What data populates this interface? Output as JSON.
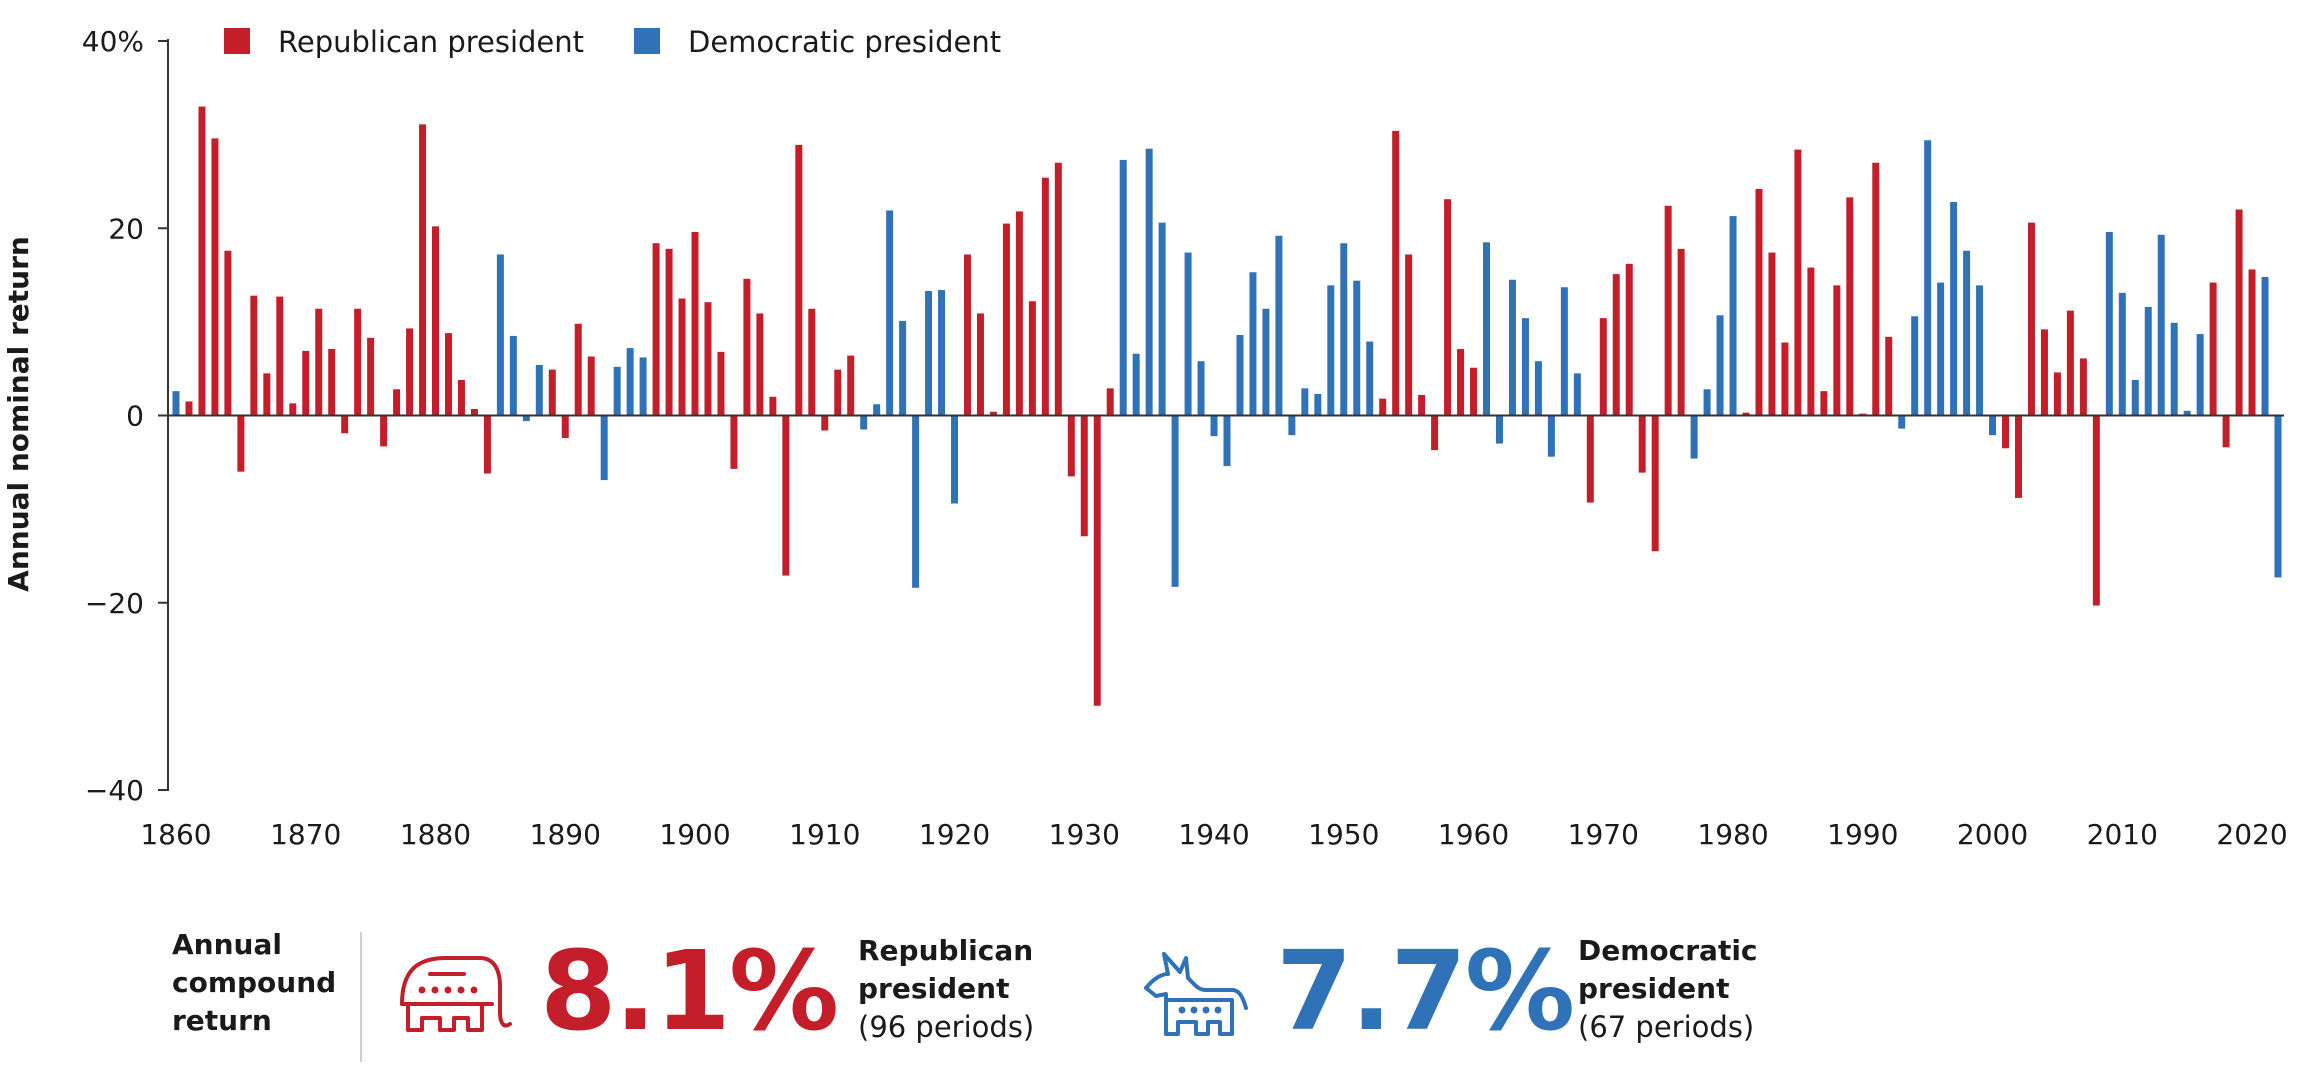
{
  "colors": {
    "republican": "#c41e2a",
    "democratic": "#2f72b8",
    "axis": "#333333"
  },
  "chart_data": {
    "type": "bar",
    "title": "",
    "xlabel": "",
    "ylabel": "Annual nominal return",
    "ylim": [
      -40,
      40
    ],
    "xlim": [
      1860,
      2022
    ],
    "y_ticks": [
      {
        "value": 40,
        "label": "40%"
      },
      {
        "value": 20,
        "label": "20"
      },
      {
        "value": 0,
        "label": "0"
      },
      {
        "value": -20,
        "label": "−20"
      },
      {
        "value": -40,
        "label": "−40"
      }
    ],
    "x_ticks": [
      1860,
      1870,
      1880,
      1890,
      1900,
      1910,
      1920,
      1930,
      1940,
      1950,
      1960,
      1970,
      1980,
      1990,
      2000,
      2010,
      2020
    ],
    "legend": [
      {
        "name": "Republican president",
        "party": "R"
      },
      {
        "name": "Democratic president",
        "party": "D"
      }
    ],
    "legend_position": "top-left",
    "grid": false,
    "series": [
      {
        "name": "Republican president",
        "party": "R",
        "points": [
          [
            1861,
            1.5
          ],
          [
            1862,
            33
          ],
          [
            1863,
            29.6
          ],
          [
            1864,
            17.6
          ],
          [
            1865,
            -6
          ],
          [
            1866,
            12.8
          ],
          [
            1867,
            4.5
          ],
          [
            1868,
            12.7
          ],
          [
            1869,
            1.3
          ],
          [
            1870,
            6.9
          ],
          [
            1871,
            11.4
          ],
          [
            1872,
            7.1
          ],
          [
            1873,
            -1.9
          ],
          [
            1874,
            11.4
          ],
          [
            1875,
            8.3
          ],
          [
            1876,
            -3.3
          ],
          [
            1877,
            2.8
          ],
          [
            1878,
            9.3
          ],
          [
            1879,
            31.1
          ],
          [
            1880,
            20.2
          ],
          [
            1881,
            8.8
          ],
          [
            1882,
            3.8
          ],
          [
            1883,
            0.7
          ],
          [
            1884,
            -6.2
          ],
          [
            1889,
            4.9
          ],
          [
            1890,
            -2.4
          ],
          [
            1891,
            9.8
          ],
          [
            1892,
            6.3
          ],
          [
            1897,
            18.4
          ],
          [
            1898,
            17.8
          ],
          [
            1899,
            12.5
          ],
          [
            1900,
            19.6
          ],
          [
            1901,
            12.1
          ],
          [
            1902,
            6.8
          ],
          [
            1903,
            -5.7
          ],
          [
            1904,
            14.6
          ],
          [
            1905,
            10.9
          ],
          [
            1906,
            2
          ],
          [
            1907,
            -17.1
          ],
          [
            1908,
            28.9
          ],
          [
            1909,
            11.4
          ],
          [
            1910,
            -1.6
          ],
          [
            1911,
            4.9
          ],
          [
            1912,
            6.4
          ],
          [
            1921,
            17.2
          ],
          [
            1922,
            10.9
          ],
          [
            1923,
            0.4
          ],
          [
            1924,
            20.5
          ],
          [
            1925,
            21.8
          ],
          [
            1926,
            12.2
          ],
          [
            1927,
            25.4
          ],
          [
            1928,
            27
          ],
          [
            1929,
            -6.5
          ],
          [
            1930,
            -12.9
          ],
          [
            1931,
            -31
          ],
          [
            1932,
            2.9
          ],
          [
            1953,
            1.8
          ],
          [
            1954,
            30.4
          ],
          [
            1955,
            17.2
          ],
          [
            1956,
            2.2
          ],
          [
            1957,
            -3.7
          ],
          [
            1958,
            23.1
          ],
          [
            1959,
            7.1
          ],
          [
            1960,
            5.1
          ],
          [
            1969,
            -9.3
          ],
          [
            1970,
            10.4
          ],
          [
            1971,
            15.1
          ],
          [
            1972,
            16.2
          ],
          [
            1973,
            -6.1
          ],
          [
            1974,
            -14.5
          ],
          [
            1975,
            22.4
          ],
          [
            1976,
            17.8
          ],
          [
            1981,
            0.3
          ],
          [
            1982,
            24.2
          ],
          [
            1983,
            17.4
          ],
          [
            1984,
            7.8
          ],
          [
            1985,
            28.4
          ],
          [
            1986,
            15.8
          ],
          [
            1987,
            2.6
          ],
          [
            1988,
            13.9
          ],
          [
            1989,
            23.3
          ],
          [
            1990,
            0.2
          ],
          [
            1991,
            27
          ],
          [
            1992,
            8.4
          ],
          [
            2001,
            -3.5
          ],
          [
            2002,
            -8.8
          ],
          [
            2003,
            20.6
          ],
          [
            2004,
            9.2
          ],
          [
            2005,
            4.6
          ],
          [
            2006,
            11.2
          ],
          [
            2007,
            6.1
          ],
          [
            2008,
            -20.3
          ],
          [
            2017,
            14.2
          ],
          [
            2018,
            -3.4
          ],
          [
            2019,
            22
          ],
          [
            2020,
            15.6
          ]
        ]
      },
      {
        "name": "Democratic president",
        "party": "D",
        "points": [
          [
            1860,
            2.6
          ],
          [
            1885,
            17.2
          ],
          [
            1886,
            8.5
          ],
          [
            1887,
            -0.6
          ],
          [
            1888,
            5.4
          ],
          [
            1893,
            -6.9
          ],
          [
            1894,
            5.2
          ],
          [
            1895,
            7.2
          ],
          [
            1896,
            6.2
          ],
          [
            1913,
            -1.5
          ],
          [
            1914,
            1.2
          ],
          [
            1915,
            21.9
          ],
          [
            1916,
            10.1
          ],
          [
            1917,
            -18.4
          ],
          [
            1918,
            13.3
          ],
          [
            1919,
            13.4
          ],
          [
            1920,
            -9.4
          ],
          [
            1933,
            27.3
          ],
          [
            1934,
            6.6
          ],
          [
            1935,
            28.5
          ],
          [
            1936,
            20.6
          ],
          [
            1937,
            -18.3
          ],
          [
            1938,
            17.4
          ],
          [
            1939,
            5.8
          ],
          [
            1940,
            -2.2
          ],
          [
            1941,
            -5.4
          ],
          [
            1942,
            8.6
          ],
          [
            1943,
            15.3
          ],
          [
            1944,
            11.4
          ],
          [
            1945,
            19.2
          ],
          [
            1946,
            -2.1
          ],
          [
            1947,
            2.9
          ],
          [
            1948,
            2.3
          ],
          [
            1949,
            13.9
          ],
          [
            1950,
            18.4
          ],
          [
            1951,
            14.4
          ],
          [
            1952,
            7.9
          ],
          [
            1961,
            18.5
          ],
          [
            1962,
            -3
          ],
          [
            1963,
            14.5
          ],
          [
            1964,
            10.4
          ],
          [
            1965,
            5.8
          ],
          [
            1966,
            -4.4
          ],
          [
            1967,
            13.7
          ],
          [
            1968,
            4.5
          ],
          [
            1977,
            -4.6
          ],
          [
            1978,
            2.8
          ],
          [
            1979,
            10.7
          ],
          [
            1980,
            21.3
          ],
          [
            1993,
            -1.4
          ],
          [
            1994,
            10.6
          ],
          [
            1995,
            29.4
          ],
          [
            1996,
            14.2
          ],
          [
            1997,
            22.8
          ],
          [
            1998,
            17.6
          ],
          [
            1999,
            13.9
          ],
          [
            2000,
            -2.1
          ],
          [
            2009,
            19.6
          ],
          [
            2010,
            13.1
          ],
          [
            2011,
            3.8
          ],
          [
            2012,
            11.6
          ],
          [
            2013,
            19.3
          ],
          [
            2014,
            9.9
          ],
          [
            2015,
            0.5
          ],
          [
            2016,
            8.7
          ],
          [
            2021,
            14.8
          ],
          [
            2022,
            -17.3
          ]
        ]
      }
    ]
  },
  "summary": {
    "label": [
      "Annual",
      "compound",
      "return"
    ],
    "republican": {
      "icon": "elephant-icon",
      "value": "8.1%",
      "party": [
        "Republican",
        "president"
      ],
      "periods": "(96 periods)"
    },
    "democratic": {
      "icon": "donkey-icon",
      "value": "7.7%",
      "party": [
        "Democratic",
        "president"
      ],
      "periods": "(67 periods)"
    }
  }
}
